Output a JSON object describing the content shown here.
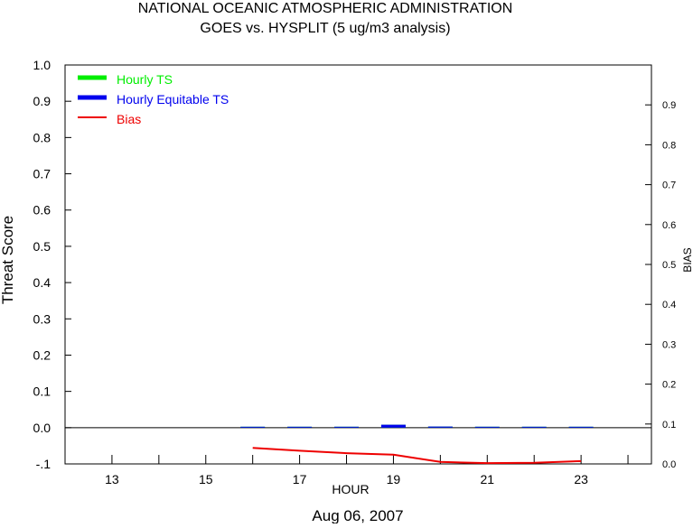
{
  "chart_data": {
    "type": "line",
    "title": "NATIONAL OCEANIC ATMOSPHERIC ADMINISTRATION",
    "subtitle": "GOES vs. HYSPLIT  (5 ug/m3 analysis)",
    "xlabel": "HOUR",
    "ylabel": "Threat Score",
    "y2label": "BIAS",
    "date_label": "Aug 06, 2007",
    "x_range": [
      12,
      24.5
    ],
    "ylim": [
      -0.1,
      1.0
    ],
    "y2lim": [
      0.0,
      1.0
    ],
    "x_ticks": [
      13,
      15,
      17,
      19,
      21,
      23
    ],
    "x_tick_labels": [
      "13",
      "15",
      "17",
      "19",
      "21",
      "23"
    ],
    "x_minor_ticks": [
      14,
      16,
      18,
      20,
      22,
      24
    ],
    "y_ticks": [
      -0.1,
      0.0,
      0.1,
      0.2,
      0.3,
      0.4,
      0.5,
      0.6,
      0.7,
      0.8,
      0.9,
      1.0
    ],
    "y_tick_labels": [
      "-.1",
      "0.0",
      "0.1",
      "0.2",
      "0.3",
      "0.4",
      "0.5",
      "0.6",
      "0.7",
      "0.8",
      "0.9",
      "1.0"
    ],
    "y2_ticks": [
      0.0,
      0.1,
      0.2,
      0.3,
      0.4,
      0.5,
      0.6,
      0.7,
      0.8,
      0.9
    ],
    "y2_tick_labels": [
      "0.0",
      "0.1",
      "0.2",
      "0.3",
      "0.4",
      "0.5",
      "0.6",
      "0.7",
      "0.8",
      "0.9"
    ],
    "grid": false,
    "legend_position": "top-left",
    "series": [
      {
        "name": "Hourly TS",
        "color": "#00ee00",
        "axis": "left",
        "style": "segments",
        "x": [
          16,
          17,
          18,
          19,
          20,
          21,
          22,
          23
        ],
        "values": [
          0.0,
          0.0,
          0.002,
          0.008,
          0.003,
          0.0,
          0.0,
          0.0
        ]
      },
      {
        "name": "Hourly Equitable TS",
        "color": "#0000ee",
        "axis": "left",
        "style": "segments",
        "x": [
          16,
          17,
          18,
          19,
          20,
          21,
          22,
          23
        ],
        "values": [
          0.0,
          0.0,
          0.002,
          0.008,
          0.003,
          0.0,
          0.0,
          0.0
        ]
      },
      {
        "name": "Bias",
        "color": "#ee0000",
        "axis": "right",
        "style": "line",
        "x": [
          16,
          17,
          18,
          19,
          20,
          21,
          22,
          23
        ],
        "values": [
          0.04,
          0.033,
          0.027,
          0.023,
          0.005,
          0.002,
          0.003,
          0.007
        ]
      }
    ]
  }
}
